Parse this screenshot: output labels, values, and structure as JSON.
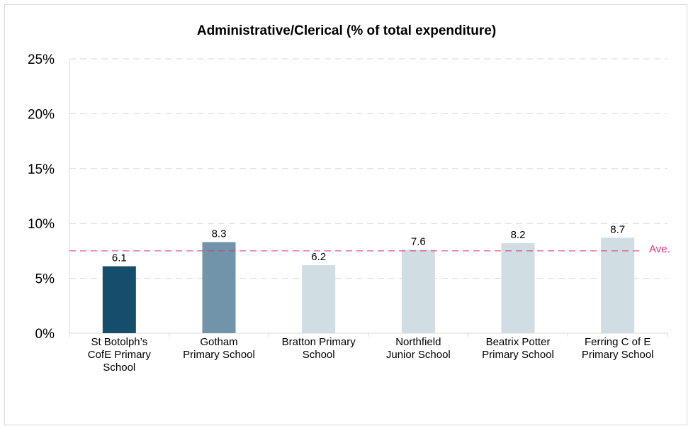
{
  "chart_data": {
    "type": "bar",
    "title": "Administrative/Clerical (% of total expenditure)",
    "xlabel": "",
    "ylabel": "",
    "ylim": [
      0,
      25
    ],
    "yticks": [
      "0%",
      "5%",
      "10%",
      "15%",
      "20%",
      "25%"
    ],
    "ytick_values": [
      0,
      5,
      10,
      15,
      20,
      25
    ],
    "grid": true,
    "categories": [
      [
        "St Botolph’s",
        "CofE Primary",
        "School"
      ],
      [
        "Gotham",
        "Primary School"
      ],
      [
        "Bratton Primary",
        "School"
      ],
      [
        "Northfield",
        "Junior School"
      ],
      [
        "Beatrix Potter",
        "Primary School"
      ],
      [
        "Ferring C of E",
        "Primary School"
      ]
    ],
    "values": [
      6.1,
      8.3,
      6.2,
      7.6,
      8.2,
      8.7
    ],
    "data_labels": [
      "6.1",
      "8.3",
      "6.2",
      "7.6",
      "8.2",
      "8.7"
    ],
    "bar_colors": [
      "#154e6c",
      "#7294aa",
      "#d0dde3",
      "#d0dde3",
      "#d0dde3",
      "#d0dde3"
    ],
    "average": {
      "label": "Ave.",
      "value": 7.5,
      "color": "#e0307a"
    },
    "grid_color": "#d9d9d9",
    "axis_color": "#d9d9d9"
  }
}
